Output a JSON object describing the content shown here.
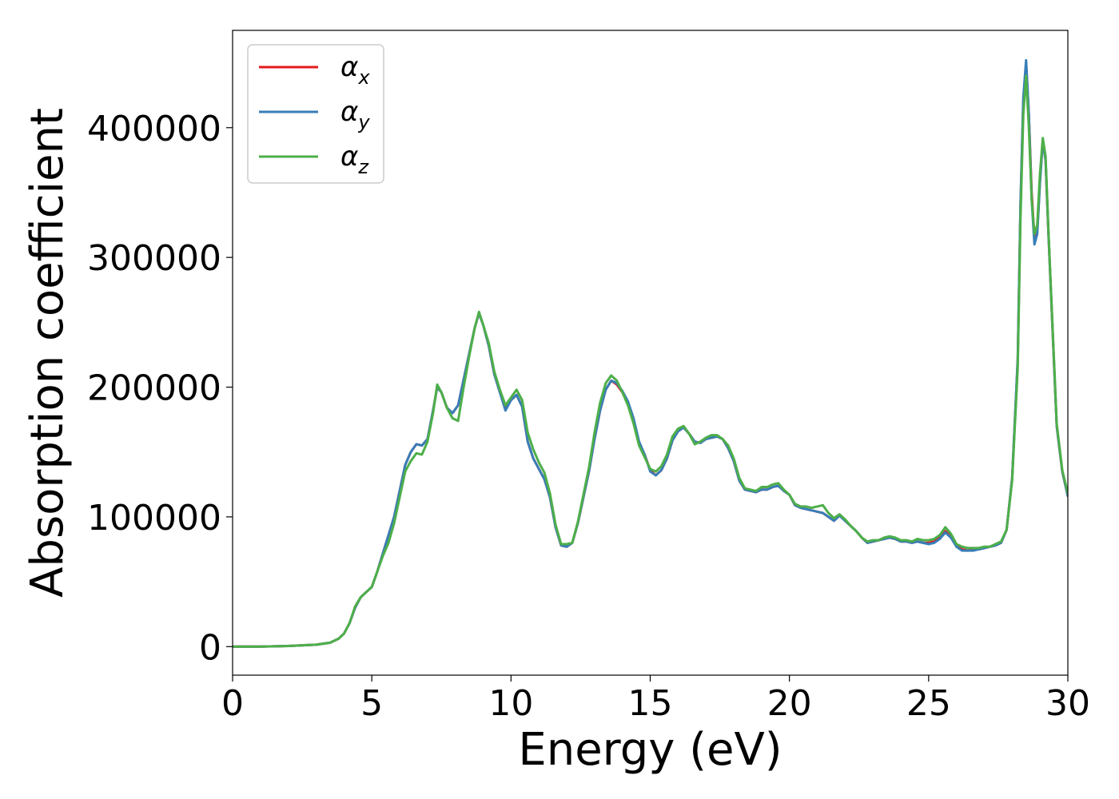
{
  "chart_data": {
    "type": "line",
    "title": "",
    "xlabel": "Energy (eV)",
    "ylabel": "Absorption coefficient",
    "xlim": [
      0,
      30
    ],
    "ylim": [
      -22000,
      475000
    ],
    "xticks": [
      0,
      5,
      10,
      15,
      20,
      25,
      30
    ],
    "xtick_labels": [
      "0",
      "5",
      "10",
      "15",
      "20",
      "25",
      "30"
    ],
    "yticks": [
      0,
      100000,
      200000,
      300000,
      400000
    ],
    "ytick_labels": [
      "0",
      "100000",
      "200000",
      "300000",
      "400000"
    ],
    "grid": false,
    "legend_position": "top-left",
    "colors": {
      "alpha_x": "#e41a1c",
      "alpha_y": "#377eb8",
      "alpha_z": "#4daf4a"
    },
    "x": [
      0,
      1,
      2,
      3,
      3.5,
      3.8,
      4.0,
      4.2,
      4.4,
      4.6,
      4.8,
      5.0,
      5.2,
      5.4,
      5.6,
      5.8,
      6.0,
      6.2,
      6.4,
      6.6,
      6.8,
      7.0,
      7.2,
      7.35,
      7.5,
      7.7,
      7.9,
      8.1,
      8.3,
      8.5,
      8.7,
      8.85,
      9.0,
      9.2,
      9.4,
      9.6,
      9.8,
      10.0,
      10.2,
      10.4,
      10.6,
      10.8,
      11.0,
      11.2,
      11.4,
      11.6,
      11.8,
      12.0,
      12.2,
      12.4,
      12.6,
      12.8,
      13.0,
      13.2,
      13.4,
      13.6,
      13.8,
      14.0,
      14.2,
      14.4,
      14.6,
      14.8,
      15.0,
      15.2,
      15.4,
      15.6,
      15.8,
      16.0,
      16.2,
      16.4,
      16.6,
      16.8,
      17.0,
      17.2,
      17.4,
      17.6,
      17.8,
      18.0,
      18.2,
      18.4,
      18.6,
      18.8,
      19.0,
      19.2,
      19.4,
      19.6,
      19.8,
      20.0,
      20.2,
      20.4,
      20.6,
      20.8,
      21.0,
      21.2,
      21.4,
      21.6,
      21.8,
      22.0,
      22.2,
      22.4,
      22.6,
      22.8,
      23.0,
      23.2,
      23.4,
      23.6,
      23.8,
      24.0,
      24.2,
      24.4,
      24.6,
      24.8,
      25.0,
      25.2,
      25.4,
      25.6,
      25.8,
      26.0,
      26.2,
      26.4,
      26.6,
      26.8,
      27.0,
      27.2,
      27.4,
      27.6,
      27.8,
      28.0,
      28.2,
      28.3,
      28.4,
      28.5,
      28.6,
      28.7,
      28.8,
      28.9,
      29.0,
      29.1,
      29.2,
      29.3,
      29.4,
      29.6,
      29.8,
      30.0
    ],
    "series": [
      {
        "name": "α_x",
        "label_base": "α",
        "label_sub": "x",
        "color": "#e41a1c",
        "values": [
          0,
          0,
          500,
          1500,
          3000,
          6000,
          10000,
          18000,
          30000,
          38000,
          42000,
          46000,
          58000,
          72000,
          86000,
          100000,
          120000,
          140000,
          150000,
          156000,
          155000,
          160000,
          182000,
          200000,
          196000,
          184000,
          180000,
          186000,
          206000,
          226000,
          246000,
          257000,
          248000,
          232000,
          210000,
          196000,
          184000,
          190000,
          194000,
          185000,
          158000,
          145000,
          137000,
          129000,
          115000,
          92000,
          78000,
          77000,
          80000,
          95000,
          115000,
          135000,
          160000,
          182000,
          198000,
          205000,
          202000,
          196000,
          188000,
          175000,
          157000,
          148000,
          136000,
          132000,
          136000,
          145000,
          159000,
          166000,
          169000,
          164000,
          158000,
          157000,
          160000,
          161000,
          162000,
          160000,
          153000,
          143000,
          128000,
          121000,
          120000,
          119000,
          121000,
          121000,
          123000,
          124000,
          120000,
          117000,
          109000,
          107000,
          106000,
          105000,
          104000,
          103000,
          100000,
          97000,
          101000,
          97000,
          93000,
          89000,
          84000,
          80000,
          81000,
          82000,
          83000,
          84000,
          83000,
          81000,
          81000,
          80000,
          81000,
          80000,
          80000,
          81000,
          84000,
          89000,
          85000,
          78000,
          75000,
          74000,
          75000,
          75000,
          76000,
          77000,
          78000,
          80000,
          90000,
          130000,
          220000,
          340000,
          420000,
          450000,
          410000,
          350000,
          315000,
          320000,
          360000,
          390000,
          375000,
          320000,
          270000,
          170000,
          135000,
          116000
        ]
      },
      {
        "name": "α_y",
        "label_base": "α",
        "label_sub": "y",
        "color": "#377eb8",
        "values": [
          0,
          0,
          500,
          1500,
          3000,
          6000,
          10000,
          18000,
          30000,
          38000,
          42000,
          46000,
          58000,
          72000,
          86000,
          100000,
          120000,
          140000,
          150000,
          156000,
          155000,
          160000,
          182000,
          200000,
          196000,
          184000,
          180000,
          186000,
          206000,
          226000,
          246000,
          257000,
          248000,
          232000,
          210000,
          196000,
          182000,
          190000,
          194000,
          185000,
          158000,
          145000,
          137000,
          129000,
          115000,
          92000,
          78000,
          77000,
          80000,
          95000,
          115000,
          135000,
          160000,
          182000,
          198000,
          205000,
          203000,
          197000,
          189000,
          176000,
          158000,
          148000,
          135000,
          132000,
          136000,
          145000,
          159000,
          166000,
          169000,
          164000,
          158000,
          157000,
          160000,
          161000,
          162000,
          160000,
          153000,
          143000,
          128000,
          121000,
          120000,
          119000,
          121000,
          121000,
          123000,
          124000,
          120000,
          117000,
          109000,
          107000,
          106000,
          105000,
          104000,
          103000,
          100000,
          97000,
          101000,
          97000,
          93000,
          89000,
          84000,
          80000,
          81000,
          82000,
          83000,
          84000,
          83000,
          81000,
          81000,
          80000,
          81000,
          80000,
          79000,
          80000,
          83000,
          88000,
          84000,
          77000,
          74000,
          74000,
          74000,
          75000,
          76000,
          77000,
          78000,
          80000,
          90000,
          130000,
          222000,
          342000,
          423000,
          452000,
          410000,
          345000,
          310000,
          318000,
          358000,
          390000,
          375000,
          320000,
          270000,
          170000,
          135000,
          116000
        ]
      },
      {
        "name": "α_z",
        "label_base": "α",
        "label_sub": "z",
        "color": "#4daf4a",
        "values": [
          0,
          0,
          500,
          1500,
          3000,
          6000,
          10000,
          18000,
          31000,
          38000,
          42000,
          46000,
          58000,
          70000,
          80000,
          95000,
          115000,
          135000,
          143000,
          149000,
          148000,
          158000,
          180000,
          202000,
          196000,
          184000,
          176000,
          174000,
          200000,
          224000,
          246000,
          258000,
          248000,
          234000,
          212000,
          198000,
          186000,
          192000,
          198000,
          190000,
          165000,
          152000,
          142000,
          134000,
          118000,
          94000,
          79000,
          79000,
          80000,
          96000,
          117000,
          138000,
          165000,
          188000,
          203000,
          209000,
          205000,
          196000,
          186000,
          172000,
          155000,
          146000,
          137000,
          135000,
          139000,
          148000,
          162000,
          168000,
          170000,
          164000,
          156000,
          158000,
          161000,
          163000,
          163000,
          160000,
          155000,
          145000,
          130000,
          122000,
          121000,
          120000,
          123000,
          123000,
          125000,
          126000,
          121000,
          117000,
          110000,
          108000,
          108000,
          107000,
          108000,
          109000,
          103000,
          99000,
          102000,
          98000,
          93000,
          89000,
          84000,
          81000,
          82000,
          82000,
          84000,
          85000,
          84000,
          82000,
          82000,
          81000,
          83000,
          82000,
          82000,
          83000,
          86000,
          92000,
          87000,
          79000,
          77000,
          76000,
          76000,
          76000,
          77000,
          77000,
          79000,
          81000,
          90000,
          128000,
          215000,
          330000,
          410000,
          440000,
          400000,
          345000,
          318000,
          325000,
          365000,
          392000,
          378000,
          322000,
          272000,
          172000,
          136000,
          118000
        ]
      }
    ]
  }
}
